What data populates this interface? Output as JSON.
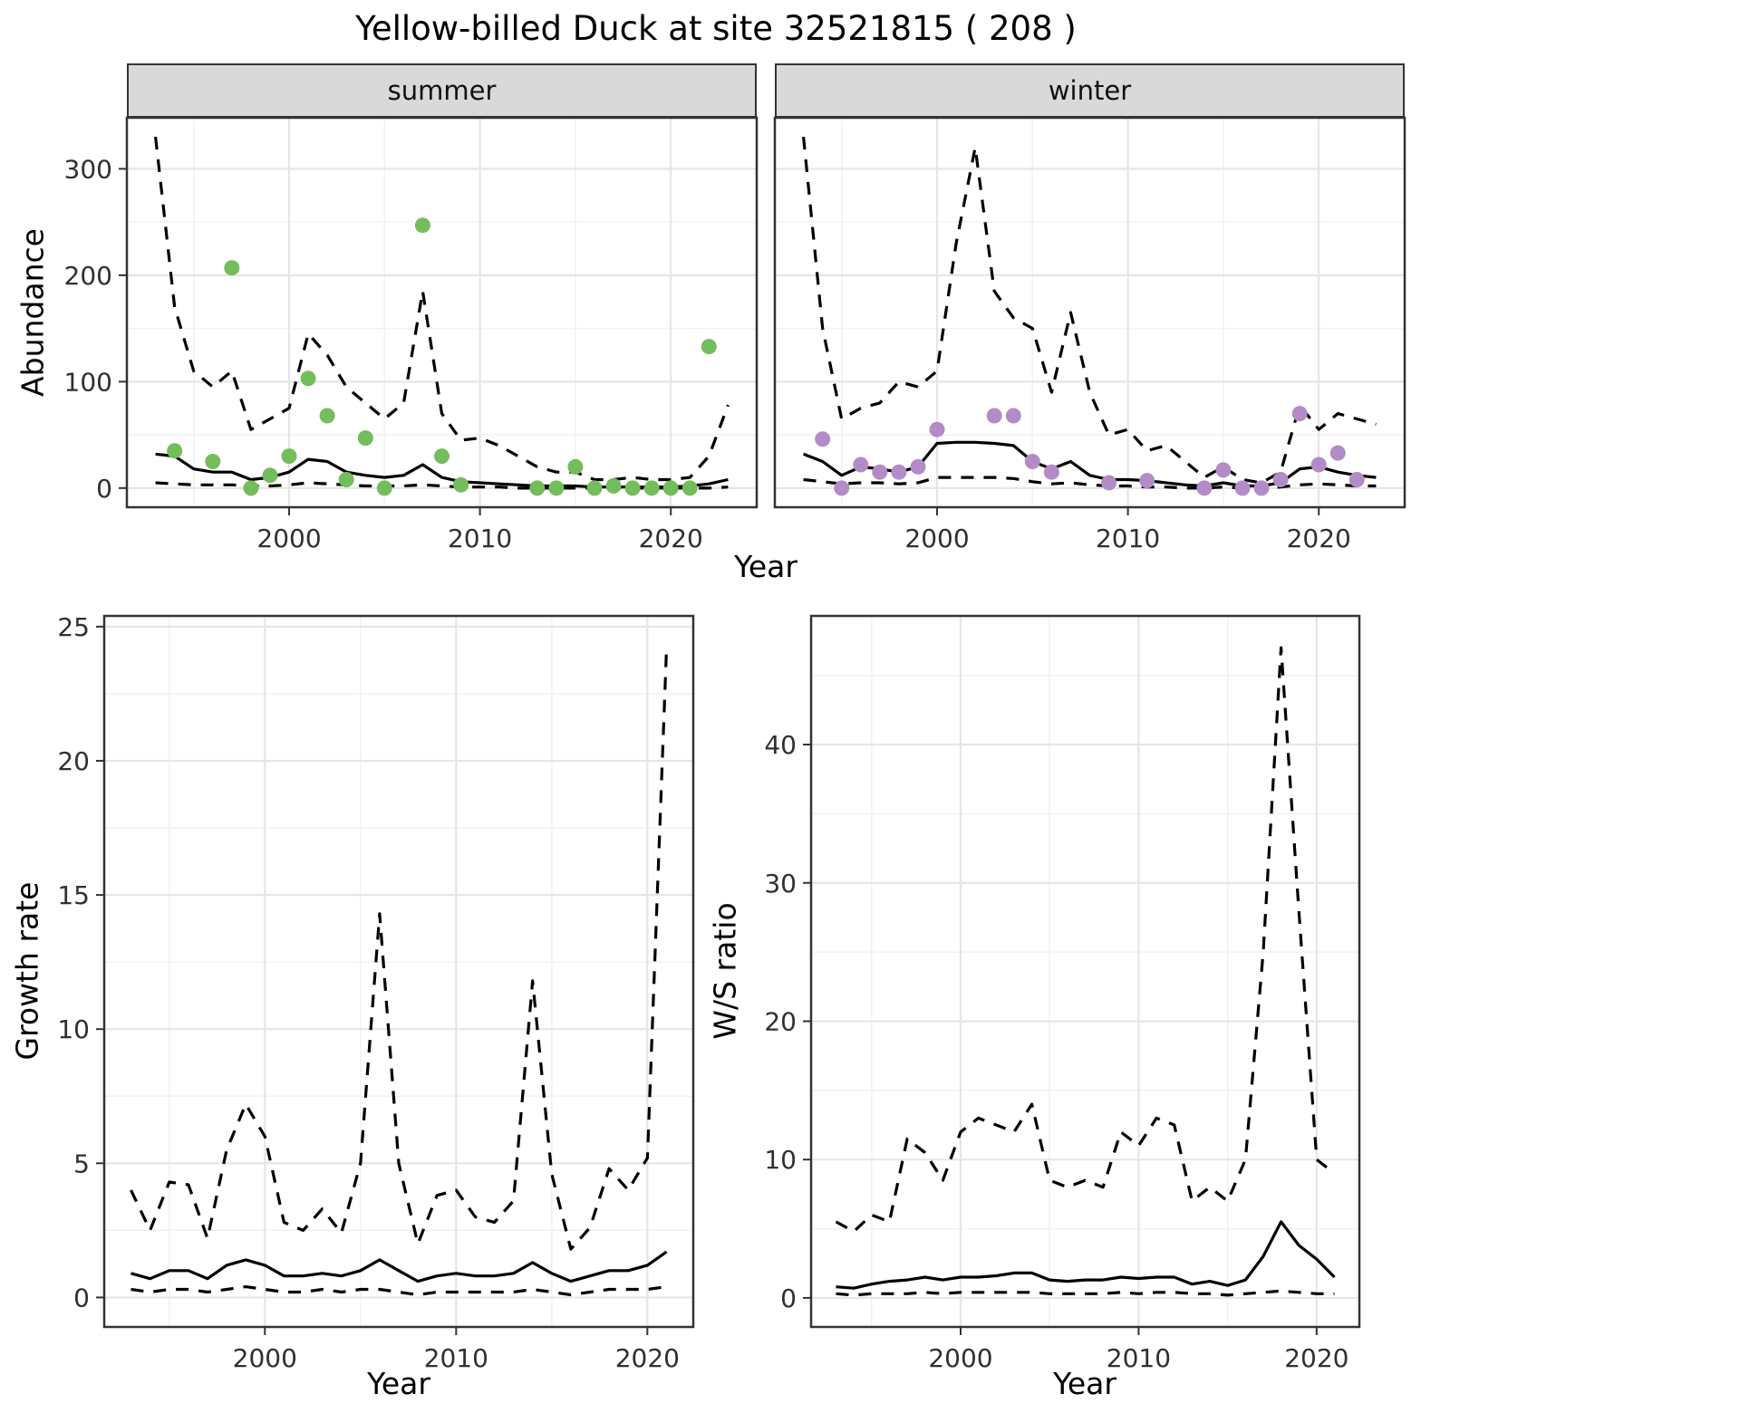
{
  "title": "Yellow-billed Duck at site 32521815 ( 208 )",
  "colors": {
    "summer_points": "#73bd5c",
    "winter_points": "#b38cc7",
    "lines": "#000000",
    "strip_background": "#d9d9d9",
    "grid_major": "#e6e6e6",
    "panel_border": "#333333"
  },
  "chart_data": [
    {
      "type": "line",
      "facet": "summer",
      "xlabel": "Year",
      "ylabel": "Abundance",
      "xlim": [
        1991.5,
        2024.5
      ],
      "ylim": [
        -18,
        348
      ],
      "xticks": [
        2000,
        2010,
        2020
      ],
      "yticks": [
        0,
        100,
        200,
        300
      ],
      "grid": true,
      "series": [
        {
          "name": "upper_credible_interval",
          "style": "dashed",
          "x": [
            1993,
            1994,
            1995,
            1996,
            1997,
            1998,
            1999,
            2000,
            2001,
            2002,
            2003,
            2004,
            2005,
            2006,
            2007,
            2008,
            2009,
            2010,
            2011,
            2012,
            2013,
            2014,
            2015,
            2016,
            2017,
            2018,
            2019,
            2020,
            2021,
            2022,
            2023
          ],
          "values": [
            330,
            170,
            110,
            95,
            110,
            55,
            65,
            75,
            145,
            125,
            95,
            80,
            65,
            80,
            185,
            70,
            45,
            47,
            40,
            30,
            20,
            15,
            15,
            8,
            8,
            10,
            8,
            8,
            10,
            30,
            78
          ]
        },
        {
          "name": "lower_credible_interval",
          "style": "dashed",
          "x": [
            1993,
            1994,
            1995,
            1996,
            1997,
            1998,
            1999,
            2000,
            2001,
            2002,
            2003,
            2004,
            2005,
            2006,
            2007,
            2008,
            2009,
            2010,
            2011,
            2012,
            2013,
            2014,
            2015,
            2016,
            2017,
            2018,
            2019,
            2020,
            2021,
            2022,
            2023
          ],
          "values": [
            5,
            4,
            3,
            3,
            3,
            2,
            2,
            3,
            5,
            4,
            3,
            2,
            2,
            2,
            3,
            2,
            1,
            1,
            1,
            0,
            0,
            0,
            0,
            0,
            0,
            0,
            0,
            0,
            0,
            0,
            1
          ]
        },
        {
          "name": "median",
          "style": "solid",
          "x": [
            1993,
            1994,
            1995,
            1996,
            1997,
            1998,
            1999,
            2000,
            2001,
            2002,
            2003,
            2004,
            2005,
            2006,
            2007,
            2008,
            2009,
            2010,
            2011,
            2012,
            2013,
            2014,
            2015,
            2016,
            2017,
            2018,
            2019,
            2020,
            2021,
            2022,
            2023
          ],
          "values": [
            32,
            30,
            18,
            15,
            15,
            8,
            10,
            15,
            27,
            25,
            15,
            12,
            10,
            12,
            22,
            10,
            6,
            5,
            4,
            3,
            2,
            2,
            2,
            1,
            1,
            1,
            1,
            1,
            2,
            4,
            8
          ]
        },
        {
          "name": "observed_counts",
          "style": "points",
          "color": "#73bd5c",
          "x": [
            1994,
            1996,
            1997,
            1998,
            1999,
            2000,
            2001,
            2002,
            2003,
            2004,
            2005,
            2007,
            2008,
            2009,
            2013,
            2014,
            2015,
            2016,
            2017,
            2018,
            2019,
            2020,
            2021,
            2022
          ],
          "values": [
            35,
            25,
            207,
            0,
            12,
            30,
            103,
            68,
            8,
            47,
            0,
            247,
            30,
            3,
            0,
            0,
            20,
            0,
            2,
            0,
            0,
            0,
            0,
            133
          ]
        }
      ]
    },
    {
      "type": "line",
      "facet": "winter",
      "xlabel": "Year",
      "ylabel": "Abundance",
      "xlim": [
        1991.5,
        2024.5
      ],
      "ylim": [
        -18,
        348
      ],
      "xticks": [
        2000,
        2010,
        2020
      ],
      "yticks": [
        0,
        100,
        200,
        300
      ],
      "grid": true,
      "series": [
        {
          "name": "upper_credible_interval",
          "style": "dashed",
          "x": [
            1993,
            1994,
            1995,
            1996,
            1997,
            1998,
            1999,
            2000,
            2001,
            2002,
            2003,
            2004,
            2005,
            2006,
            2007,
            2008,
            2009,
            2010,
            2011,
            2012,
            2013,
            2014,
            2015,
            2016,
            2017,
            2018,
            2019,
            2020,
            2021,
            2022,
            2023
          ],
          "values": [
            330,
            150,
            65,
            75,
            80,
            100,
            95,
            110,
            230,
            320,
            185,
            160,
            150,
            90,
            165,
            90,
            50,
            55,
            35,
            40,
            25,
            10,
            20,
            8,
            5,
            15,
            78,
            55,
            70,
            65,
            60
          ]
        },
        {
          "name": "lower_credible_interval",
          "style": "dashed",
          "x": [
            1993,
            1994,
            1995,
            1996,
            1997,
            1998,
            1999,
            2000,
            2001,
            2002,
            2003,
            2004,
            2005,
            2006,
            2007,
            2008,
            2009,
            2010,
            2011,
            2012,
            2013,
            2014,
            2015,
            2016,
            2017,
            2018,
            2019,
            2020,
            2021,
            2022,
            2023
          ],
          "values": [
            8,
            6,
            4,
            5,
            5,
            4,
            5,
            10,
            10,
            10,
            10,
            9,
            6,
            4,
            5,
            3,
            2,
            2,
            1,
            1,
            0,
            0,
            1,
            0,
            0,
            1,
            3,
            4,
            3,
            2,
            2
          ]
        },
        {
          "name": "median",
          "style": "solid",
          "x": [
            1993,
            1994,
            1995,
            1996,
            1997,
            1998,
            1999,
            2000,
            2001,
            2002,
            2003,
            2004,
            2005,
            2006,
            2007,
            2008,
            2009,
            2010,
            2011,
            2012,
            2013,
            2014,
            2015,
            2016,
            2017,
            2018,
            2019,
            2020,
            2021,
            2022,
            2023
          ],
          "values": [
            32,
            25,
            12,
            20,
            18,
            15,
            20,
            42,
            43,
            43,
            42,
            40,
            25,
            18,
            25,
            12,
            8,
            8,
            7,
            5,
            3,
            2,
            5,
            2,
            2,
            5,
            18,
            20,
            15,
            12,
            10
          ]
        },
        {
          "name": "observed_counts",
          "style": "points",
          "color": "#b38cc7",
          "x": [
            1994,
            1995,
            1996,
            1997,
            1998,
            1999,
            2000,
            2003,
            2004,
            2005,
            2006,
            2009,
            2011,
            2014,
            2015,
            2016,
            2017,
            2018,
            2019,
            2020,
            2021,
            2022
          ],
          "values": [
            46,
            0,
            22,
            15,
            15,
            20,
            55,
            68,
            68,
            25,
            15,
            5,
            7,
            0,
            17,
            0,
            0,
            8,
            70,
            22,
            33,
            8
          ]
        }
      ]
    },
    {
      "type": "line",
      "xlabel": "Year",
      "ylabel": "Growth rate",
      "xlim": [
        1991.6,
        2022.4
      ],
      "ylim": [
        -1.1,
        25.4
      ],
      "xticks": [
        2000,
        2010,
        2020
      ],
      "yticks": [
        0,
        5,
        10,
        15,
        20,
        25
      ],
      "grid": true,
      "series": [
        {
          "name": "upper_credible_interval",
          "style": "dashed",
          "x": [
            1993,
            1994,
            1995,
            1996,
            1997,
            1998,
            1999,
            2000,
            2001,
            2002,
            2003,
            2004,
            2005,
            2006,
            2007,
            2008,
            2009,
            2010,
            2011,
            2012,
            2013,
            2014,
            2015,
            2016,
            2017,
            2018,
            2019,
            2020,
            2021
          ],
          "values": [
            4.0,
            2.5,
            4.3,
            4.2,
            2.2,
            5.5,
            7.2,
            6.0,
            2.8,
            2.5,
            3.3,
            2.4,
            5.0,
            14.3,
            5.0,
            2.0,
            3.8,
            4.0,
            3.0,
            2.8,
            3.6,
            11.8,
            4.6,
            1.8,
            2.6,
            4.8,
            4.0,
            5.2,
            24.2
          ]
        },
        {
          "name": "median",
          "style": "solid",
          "x": [
            1993,
            1994,
            1995,
            1996,
            1997,
            1998,
            1999,
            2000,
            2001,
            2002,
            2003,
            2004,
            2005,
            2006,
            2007,
            2008,
            2009,
            2010,
            2011,
            2012,
            2013,
            2014,
            2015,
            2016,
            2017,
            2018,
            2019,
            2020,
            2021
          ],
          "values": [
            0.9,
            0.7,
            1.0,
            1.0,
            0.7,
            1.2,
            1.4,
            1.2,
            0.8,
            0.8,
            0.9,
            0.8,
            1.0,
            1.4,
            1.0,
            0.6,
            0.8,
            0.9,
            0.8,
            0.8,
            0.9,
            1.3,
            0.9,
            0.6,
            0.8,
            1.0,
            1.0,
            1.2,
            1.7
          ]
        },
        {
          "name": "lower_credible_interval",
          "style": "dashed",
          "x": [
            1993,
            1994,
            1995,
            1996,
            1997,
            1998,
            1999,
            2000,
            2001,
            2002,
            2003,
            2004,
            2005,
            2006,
            2007,
            2008,
            2009,
            2010,
            2011,
            2012,
            2013,
            2014,
            2015,
            2016,
            2017,
            2018,
            2019,
            2020,
            2021
          ],
          "values": [
            0.3,
            0.2,
            0.3,
            0.3,
            0.2,
            0.3,
            0.4,
            0.3,
            0.2,
            0.2,
            0.3,
            0.2,
            0.3,
            0.3,
            0.2,
            0.1,
            0.2,
            0.2,
            0.2,
            0.2,
            0.2,
            0.3,
            0.2,
            0.1,
            0.2,
            0.3,
            0.3,
            0.3,
            0.4
          ]
        }
      ]
    },
    {
      "type": "line",
      "xlabel": "Year",
      "ylabel": "W/S ratio",
      "xlim": [
        1991.6,
        2022.4
      ],
      "ylim": [
        -2.1,
        49.3
      ],
      "xticks": [
        2000,
        2010,
        2020
      ],
      "yticks": [
        0,
        10,
        20,
        30,
        40
      ],
      "grid": true,
      "series": [
        {
          "name": "upper_credible_interval",
          "style": "dashed",
          "x": [
            1993,
            1994,
            1995,
            1996,
            1997,
            1998,
            1999,
            2000,
            2001,
            2002,
            2003,
            2004,
            2005,
            2006,
            2007,
            2008,
            2009,
            2010,
            2011,
            2012,
            2013,
            2014,
            2015,
            2016,
            2017,
            2018,
            2019,
            2020,
            2021
          ],
          "values": [
            5.5,
            4.8,
            6.0,
            5.5,
            11.5,
            10.5,
            8.5,
            12.0,
            13.0,
            12.5,
            12.0,
            14.0,
            8.5,
            8.0,
            8.5,
            8.0,
            12.0,
            11.0,
            13.0,
            12.5,
            7.0,
            8.0,
            7.0,
            10.0,
            25.0,
            47.0,
            28.0,
            10.0,
            9.0
          ]
        },
        {
          "name": "median",
          "style": "solid",
          "x": [
            1993,
            1994,
            1995,
            1996,
            1997,
            1998,
            1999,
            2000,
            2001,
            2002,
            2003,
            2004,
            2005,
            2006,
            2007,
            2008,
            2009,
            2010,
            2011,
            2012,
            2013,
            2014,
            2015,
            2016,
            2017,
            2018,
            2019,
            2020,
            2021
          ],
          "values": [
            0.8,
            0.7,
            1.0,
            1.2,
            1.3,
            1.5,
            1.3,
            1.5,
            1.5,
            1.6,
            1.8,
            1.8,
            1.3,
            1.2,
            1.3,
            1.3,
            1.5,
            1.4,
            1.5,
            1.5,
            1.0,
            1.2,
            0.9,
            1.3,
            3.0,
            5.5,
            3.8,
            2.8,
            1.5
          ]
        },
        {
          "name": "lower_credible_interval",
          "style": "dashed",
          "x": [
            1993,
            1994,
            1995,
            1996,
            1997,
            1998,
            1999,
            2000,
            2001,
            2002,
            2003,
            2004,
            2005,
            2006,
            2007,
            2008,
            2009,
            2010,
            2011,
            2012,
            2013,
            2014,
            2015,
            2016,
            2017,
            2018,
            2019,
            2020,
            2021
          ],
          "values": [
            0.3,
            0.2,
            0.3,
            0.3,
            0.3,
            0.4,
            0.3,
            0.4,
            0.4,
            0.4,
            0.4,
            0.4,
            0.3,
            0.3,
            0.3,
            0.3,
            0.4,
            0.3,
            0.4,
            0.4,
            0.3,
            0.3,
            0.2,
            0.3,
            0.4,
            0.5,
            0.4,
            0.3,
            0.3
          ]
        }
      ]
    }
  ]
}
